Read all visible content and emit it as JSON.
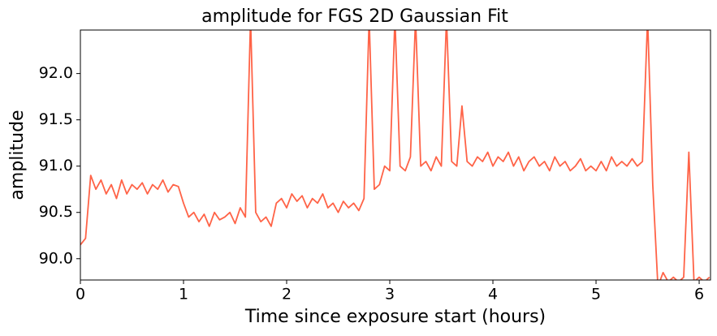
{
  "chart_data": {
    "type": "line",
    "title": "amplitude for FGS 2D Gaussian Fit",
    "xlabel": "Time since exposure start (hours)",
    "ylabel": "amplitude",
    "x": [
      0,
      0.05,
      0.1,
      0.15,
      0.2,
      0.25,
      0.3,
      0.35,
      0.4,
      0.45,
      0.5,
      0.55,
      0.6,
      0.65,
      0.7,
      0.75,
      0.8,
      0.85,
      0.9,
      0.95,
      1.0,
      1.05,
      1.1,
      1.15,
      1.2,
      1.25,
      1.3,
      1.35,
      1.4,
      1.45,
      1.5,
      1.55,
      1.6,
      1.65,
      1.7,
      1.75,
      1.8,
      1.85,
      1.9,
      1.95,
      2.0,
      2.05,
      2.1,
      2.15,
      2.2,
      2.25,
      2.3,
      2.35,
      2.4,
      2.45,
      2.5,
      2.55,
      2.6,
      2.65,
      2.7,
      2.75,
      2.8,
      2.85,
      2.9,
      2.95,
      3.0,
      3.05,
      3.1,
      3.15,
      3.2,
      3.25,
      3.3,
      3.35,
      3.4,
      3.45,
      3.5,
      3.55,
      3.6,
      3.65,
      3.7,
      3.75,
      3.8,
      3.85,
      3.9,
      3.95,
      4.0,
      4.05,
      4.1,
      4.15,
      4.2,
      4.25,
      4.3,
      4.35,
      4.4,
      4.45,
      4.5,
      4.55,
      4.6,
      4.65,
      4.7,
      4.75,
      4.8,
      4.85,
      4.9,
      4.95,
      5.0,
      5.05,
      5.1,
      5.15,
      5.2,
      5.25,
      5.3,
      5.35,
      5.4,
      5.45,
      5.5,
      5.55,
      5.6,
      5.65,
      5.7,
      5.75,
      5.8,
      5.85,
      5.9,
      5.95,
      6.0,
      6.05,
      6.1
    ],
    "series": [
      {
        "name": "amplitude",
        "color": "#ff6347",
        "values": [
          90.15,
          90.22,
          90.9,
          90.75,
          90.85,
          90.7,
          90.8,
          90.65,
          90.85,
          90.7,
          90.8,
          90.75,
          90.82,
          90.7,
          90.8,
          90.75,
          90.85,
          90.72,
          90.8,
          90.78,
          90.6,
          90.45,
          90.5,
          90.4,
          90.48,
          90.35,
          90.5,
          90.42,
          90.45,
          90.5,
          90.38,
          90.55,
          90.45,
          92.6,
          90.5,
          90.4,
          90.45,
          90.35,
          90.6,
          90.65,
          90.55,
          90.7,
          90.62,
          90.68,
          90.55,
          90.65,
          90.6,
          90.7,
          90.55,
          90.6,
          90.5,
          90.62,
          90.55,
          90.6,
          90.52,
          90.65,
          92.6,
          90.75,
          90.8,
          91.0,
          90.95,
          92.6,
          91.0,
          90.95,
          91.1,
          92.6,
          91.0,
          91.05,
          90.95,
          91.1,
          91.0,
          92.6,
          91.05,
          91.0,
          91.65,
          91.05,
          91.0,
          91.1,
          91.05,
          91.15,
          91.0,
          91.1,
          91.05,
          91.15,
          91.0,
          91.1,
          90.95,
          91.05,
          91.1,
          91.0,
          91.05,
          90.95,
          91.1,
          91.0,
          91.05,
          90.95,
          91.0,
          91.08,
          90.95,
          91.0,
          90.95,
          91.05,
          90.95,
          91.1,
          91.0,
          91.05,
          91.0,
          91.08,
          91.0,
          91.05,
          92.6,
          90.8,
          89.7,
          89.85,
          89.75,
          89.8,
          89.75,
          89.8,
          91.15,
          89.75,
          89.8,
          89.75,
          89.8
        ]
      }
    ],
    "xlim": [
      0,
      6.11
    ],
    "ylim": [
      89.77,
      92.47
    ],
    "xticks": [
      0,
      1,
      2,
      3,
      4,
      5,
      6
    ],
    "yticks": [
      {
        "value": 90,
        "label": "90.0"
      },
      90.5,
      {
        "value": 91,
        "label": "91.0"
      },
      91.5,
      {
        "value": 92,
        "label": "92.0"
      }
    ],
    "grid": false
  }
}
